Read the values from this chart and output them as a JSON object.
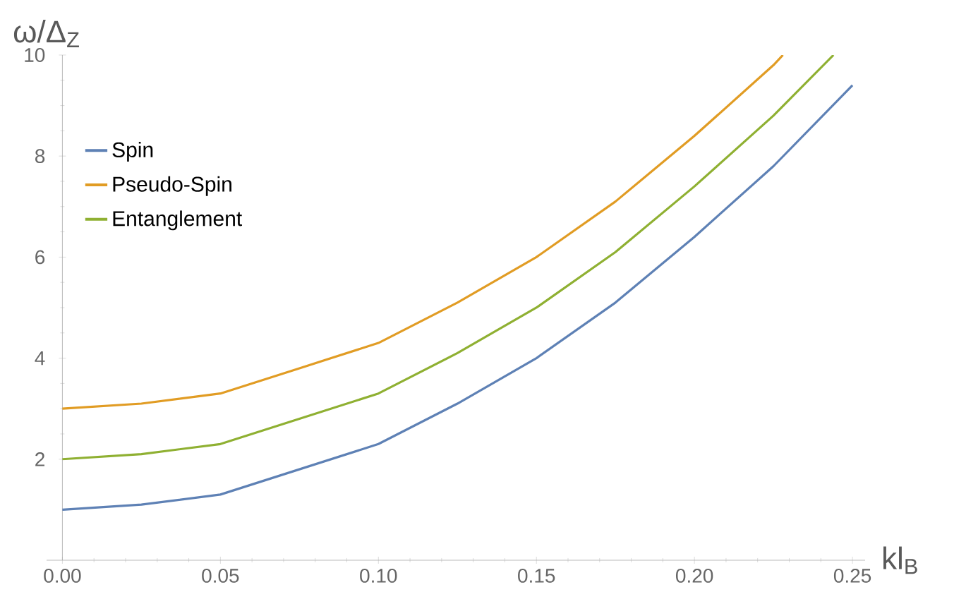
{
  "chart_data": {
    "type": "line",
    "xlabel": "kl$_{B}$",
    "ylabel": "ω/Δ$_{Z}$",
    "xlim": [
      -0.005,
      0.254
    ],
    "ylim": [
      0,
      10
    ],
    "xticks": [
      {
        "value": 0,
        "label": "0.00"
      },
      {
        "value": 0.05,
        "label": "0.05"
      },
      {
        "value": 0.1,
        "label": "0.10"
      },
      {
        "value": 0.15,
        "label": "0.15"
      },
      {
        "value": 0.2,
        "label": "0.20"
      },
      {
        "value": 0.25,
        "label": "0.25"
      }
    ],
    "yticks": [
      2,
      4,
      6,
      8,
      10
    ],
    "legend": "top left",
    "grid": false,
    "series": [
      {
        "name": "Spin",
        "color": "#5e81b5",
        "x": [
          0,
          0.025,
          0.05,
          0.075,
          0.1,
          0.125,
          0.15,
          0.175,
          0.2,
          0.225,
          0.25
        ],
        "values": [
          1,
          1.1,
          1.3,
          1.8,
          2.3,
          3.1,
          4.0,
          5.1,
          6.4,
          7.8,
          9.4
        ]
      },
      {
        "name": "Pseudo-Spin",
        "color": "#e19c24",
        "x": [
          0,
          0.025,
          0.05,
          0.075,
          0.1,
          0.125,
          0.15,
          0.175,
          0.2,
          0.225,
          0.228
        ],
        "values": [
          3,
          3.1,
          3.3,
          3.8,
          4.3,
          5.1,
          6.0,
          7.1,
          8.4,
          9.8,
          10
        ]
      },
      {
        "name": "Entanglement",
        "color": "#8fb032",
        "x": [
          0,
          0.025,
          0.05,
          0.075,
          0.1,
          0.125,
          0.15,
          0.175,
          0.2,
          0.225,
          0.244
        ],
        "values": [
          2,
          2.1,
          2.3,
          2.8,
          3.3,
          4.1,
          5.0,
          6.1,
          7.4,
          8.8,
          10
        ]
      }
    ]
  }
}
